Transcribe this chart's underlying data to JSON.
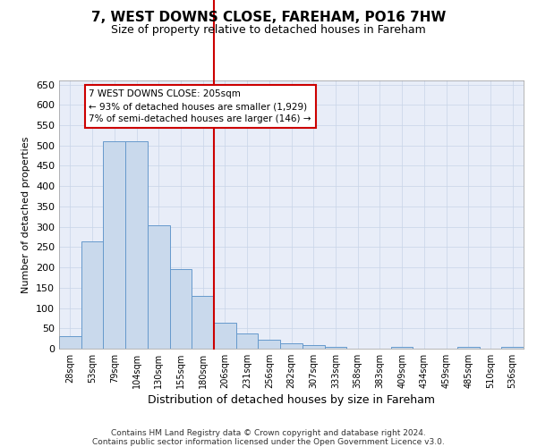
{
  "title": "7, WEST DOWNS CLOSE, FAREHAM, PO16 7HW",
  "subtitle": "Size of property relative to detached houses in Fareham",
  "xlabel": "Distribution of detached houses by size in Fareham",
  "ylabel": "Number of detached properties",
  "footer_line1": "Contains HM Land Registry data © Crown copyright and database right 2024.",
  "footer_line2": "Contains public sector information licensed under the Open Government Licence v3.0.",
  "categories": [
    "28sqm",
    "53sqm",
    "79sqm",
    "104sqm",
    "130sqm",
    "155sqm",
    "180sqm",
    "206sqm",
    "231sqm",
    "256sqm",
    "282sqm",
    "307sqm",
    "333sqm",
    "358sqm",
    "383sqm",
    "409sqm",
    "434sqm",
    "459sqm",
    "485sqm",
    "510sqm",
    "536sqm"
  ],
  "values": [
    30,
    263,
    511,
    511,
    303,
    196,
    130,
    64,
    38,
    21,
    14,
    9,
    5,
    0,
    0,
    5,
    0,
    0,
    5,
    0,
    5
  ],
  "bar_color": "#c9d9ec",
  "bar_edge_color": "#6699cc",
  "grid_color": "#c8d4e8",
  "background_color": "#e8edf8",
  "annotation_line1": "7 WEST DOWNS CLOSE: 205sqm",
  "annotation_line2": "← 93% of detached houses are smaller (1,929)",
  "annotation_line3": "7% of semi-detached houses are larger (146) →",
  "marker_line_bar_index": 7,
  "marker_line_color": "#cc0000",
  "annotation_box_color": "#cc0000",
  "ylim": [
    0,
    660
  ],
  "yticks": [
    0,
    50,
    100,
    150,
    200,
    250,
    300,
    350,
    400,
    450,
    500,
    550,
    600,
    650
  ],
  "title_fontsize": 11,
  "subtitle_fontsize": 9,
  "ylabel_fontsize": 8,
  "xlabel_fontsize": 9,
  "tick_fontsize": 7,
  "footer_fontsize": 6.5
}
